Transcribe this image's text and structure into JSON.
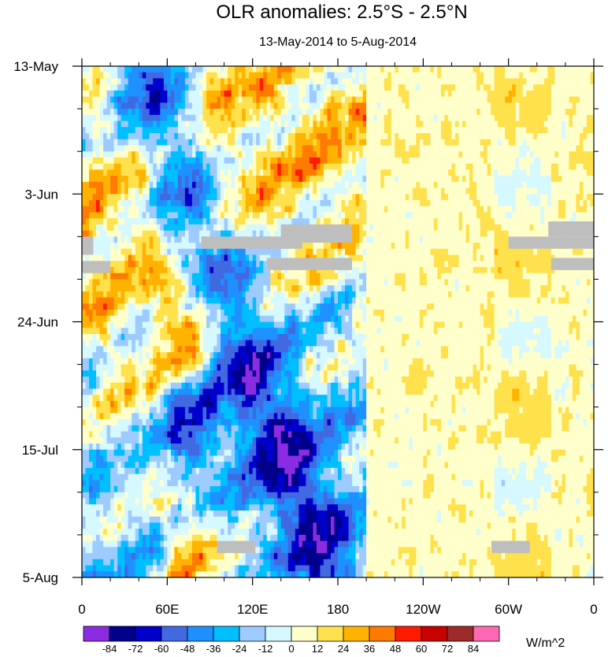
{
  "chart_data": {
    "type": "heatmap",
    "title": "OLR anomalies: 2.5°S - 2.5°N",
    "subtitle": "13-May-2014 to 5-Aug-2014",
    "x_ticks": [
      "0",
      "60E",
      "120E",
      "180",
      "120W",
      "60W",
      "0"
    ],
    "x_tick_values": [
      0,
      60,
      120,
      180,
      240,
      300,
      360
    ],
    "xlim": [
      0,
      360
    ],
    "y_ticks": [
      "13-May",
      "3-Jun",
      "24-Jun",
      "15-Jul",
      "5-Aug"
    ],
    "y_tick_values": [
      0,
      21,
      42,
      63,
      84
    ],
    "ylim": [
      0,
      84
    ],
    "colorbar": {
      "units": "W/m^2",
      "labels": [
        "-84",
        "-72",
        "-60",
        "-48",
        "-36",
        "-24",
        "-12",
        "0",
        "12",
        "24",
        "36",
        "48",
        "60",
        "72",
        "84"
      ],
      "colors": [
        "#8b2be2",
        "#00008b",
        "#0000cd",
        "#4169e1",
        "#1e90ff",
        "#00bfff",
        "#9ecbff",
        "#d6f8ff",
        "#ffffcc",
        "#ffe14d",
        "#ffb300",
        "#ff7a00",
        "#ff1a00",
        "#c80000",
        "#9e2a2a",
        "#ff69b4"
      ]
    },
    "missing_color": "#bebebe",
    "missing_bands": [
      {
        "lon": [
          0,
          8
        ],
        "day": [
          28,
          31
        ]
      },
      {
        "lon": [
          0,
          20
        ],
        "day": [
          32,
          34
        ]
      },
      {
        "lon": [
          84,
          155
        ],
        "day": [
          28,
          30
        ]
      },
      {
        "lon": [
          140,
          190
        ],
        "day": [
          26,
          29
        ]
      },
      {
        "lon": [
          130,
          190
        ],
        "day": [
          31.5,
          33.5
        ]
      },
      {
        "lon": [
          300,
          360
        ],
        "day": [
          28,
          30
        ]
      },
      {
        "lon": [
          328,
          360
        ],
        "day": [
          25.5,
          28
        ]
      },
      {
        "lon": [
          330,
          360
        ],
        "day": [
          31.5,
          33.5
        ]
      },
      {
        "lon": [
          95,
          122
        ],
        "day": [
          78,
          80
        ]
      },
      {
        "lon": [
          288,
          315
        ],
        "day": [
          78,
          80
        ]
      }
    ]
  }
}
